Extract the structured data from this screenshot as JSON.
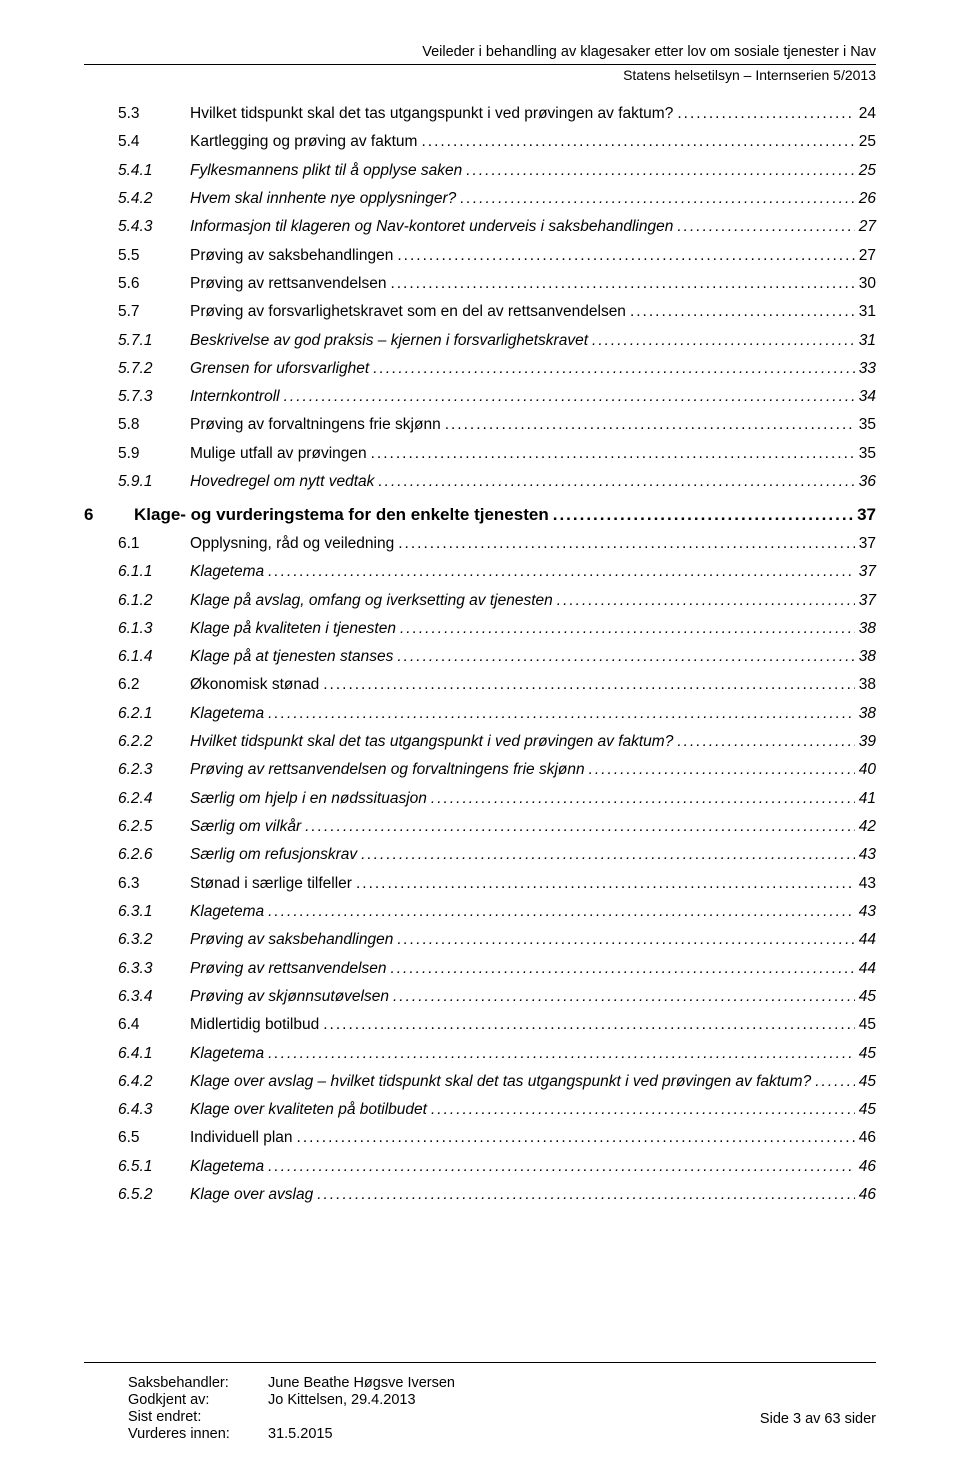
{
  "header": {
    "title": "Veileder i behandling av klagesaker etter lov om sosiale tjenester i Nav",
    "subtitle": "Statens helsetilsyn – Internserien 5/2013"
  },
  "toc": [
    {
      "level": 2,
      "num": "5.3",
      "title": "Hvilket tidspunkt skal det tas utgangspunkt i ved prøvingen av faktum?",
      "page": "24"
    },
    {
      "level": 2,
      "num": "5.4",
      "title": "Kartlegging og prøving av faktum",
      "page": "25"
    },
    {
      "level": 3,
      "num": "5.4.1",
      "title": "Fylkesmannens plikt til å opplyse saken",
      "page": "25"
    },
    {
      "level": 3,
      "num": "5.4.2",
      "title": "Hvem skal innhente nye opplysninger?",
      "page": "26"
    },
    {
      "level": 3,
      "num": "5.4.3",
      "title": "Informasjon til klageren og Nav-kontoret underveis i saksbehandlingen",
      "page": "27"
    },
    {
      "level": 2,
      "num": "5.5",
      "title": "Prøving av saksbehandlingen",
      "page": "27"
    },
    {
      "level": 2,
      "num": "5.6",
      "title": "Prøving av rettsanvendelsen",
      "page": "30"
    },
    {
      "level": 2,
      "num": "5.7",
      "title": "Prøving av forsvarlighetskravet som en del av rettsanvendelsen",
      "page": "31"
    },
    {
      "level": 3,
      "num": "5.7.1",
      "title": "Beskrivelse av god praksis – kjernen i forsvarlighetskravet",
      "page": "31"
    },
    {
      "level": 3,
      "num": "5.7.2",
      "title": "Grensen for uforsvarlighet",
      "page": "33"
    },
    {
      "level": 3,
      "num": "5.7.3",
      "title": "Internkontroll",
      "page": "34"
    },
    {
      "level": 2,
      "num": "5.8",
      "title": "Prøving av forvaltningens frie skjønn",
      "page": "35"
    },
    {
      "level": 2,
      "num": "5.9",
      "title": "Mulige utfall av prøvingen",
      "page": "35"
    },
    {
      "level": 3,
      "num": "5.9.1",
      "title": "Hovedregel om nytt vedtak",
      "page": "36"
    },
    {
      "level": 1,
      "num": "6",
      "title": "Klage- og vurderingstema for den enkelte tjenesten",
      "page": "37"
    },
    {
      "level": 2,
      "num": "6.1",
      "title": "Opplysning, råd og veiledning",
      "page": "37"
    },
    {
      "level": 3,
      "num": "6.1.1",
      "title": "Klagetema",
      "page": "37"
    },
    {
      "level": 3,
      "num": "6.1.2",
      "title": "Klage på avslag, omfang og iverksetting av tjenesten",
      "page": "37"
    },
    {
      "level": 3,
      "num": "6.1.3",
      "title": "Klage på kvaliteten i tjenesten",
      "page": "38"
    },
    {
      "level": 3,
      "num": "6.1.4",
      "title": "Klage på at tjenesten stanses",
      "page": "38"
    },
    {
      "level": 2,
      "num": "6.2",
      "title": "Økonomisk stønad",
      "page": "38"
    },
    {
      "level": 3,
      "num": "6.2.1",
      "title": "Klagetema",
      "page": "38"
    },
    {
      "level": 3,
      "num": "6.2.2",
      "title": "Hvilket tidspunkt skal det tas utgangspunkt i ved prøvingen av faktum?",
      "page": "39"
    },
    {
      "level": 3,
      "num": "6.2.3",
      "title": "Prøving av rettsanvendelsen og forvaltningens frie skjønn",
      "page": "40"
    },
    {
      "level": 3,
      "num": "6.2.4",
      "title": "Særlig om hjelp i en nødssituasjon",
      "page": "41"
    },
    {
      "level": 3,
      "num": "6.2.5",
      "title": "Særlig om vilkår",
      "page": "42"
    },
    {
      "level": 3,
      "num": "6.2.6",
      "title": "Særlig om refusjonskrav",
      "page": "43"
    },
    {
      "level": 2,
      "num": "6.3",
      "title": "Stønad i særlige tilfeller",
      "page": "43"
    },
    {
      "level": 3,
      "num": "6.3.1",
      "title": "Klagetema",
      "page": "43"
    },
    {
      "level": 3,
      "num": "6.3.2",
      "title": "Prøving av saksbehandlingen",
      "page": "44"
    },
    {
      "level": 3,
      "num": "6.3.3",
      "title": "Prøving av rettsanvendelsen",
      "page": "44"
    },
    {
      "level": 3,
      "num": "6.3.4",
      "title": "Prøving av skjønnsutøvelsen",
      "page": "45"
    },
    {
      "level": 2,
      "num": "6.4",
      "title": "Midlertidig botilbud",
      "page": "45"
    },
    {
      "level": 3,
      "num": "6.4.1",
      "title": "Klagetema",
      "page": "45"
    },
    {
      "level": 3,
      "num": "6.4.2",
      "title": "Klage over avslag – hvilket tidspunkt skal det tas utgangspunkt i ved prøvingen av faktum?",
      "page": "45"
    },
    {
      "level": 3,
      "num": "6.4.3",
      "title": "Klage over kvaliteten på botilbudet",
      "page": "45"
    },
    {
      "level": 2,
      "num": "6.5",
      "title": "Individuell plan",
      "page": "46"
    },
    {
      "level": 3,
      "num": "6.5.1",
      "title": "Klagetema",
      "page": "46"
    },
    {
      "level": 3,
      "num": "6.5.2",
      "title": "Klage over avslag",
      "page": "46"
    }
  ],
  "footer": {
    "rows": [
      {
        "label": "Saksbehandler:",
        "value": "June Beathe Høgsve Iversen"
      },
      {
        "label": "Godkjent av:",
        "value": "Jo Kittelsen, 29.4.2013"
      },
      {
        "label": "Sist endret:",
        "value": ""
      },
      {
        "label": "Vurderes innen:",
        "value": "31.5.2015"
      }
    ],
    "page_text": "Side 3 av 63 sider"
  }
}
